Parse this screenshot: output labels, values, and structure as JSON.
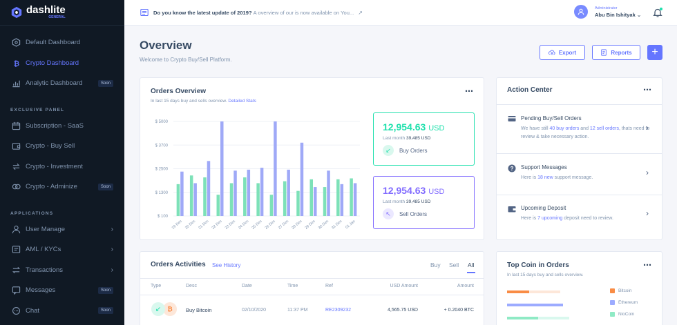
{
  "brand": {
    "name": "dashlite",
    "edition": "GENERAL"
  },
  "sidebar": {
    "dashboards": [
      {
        "label": "Default Dashboard",
        "icon": "dashboard-icon",
        "active": false
      },
      {
        "label": "Crypto Dashboard",
        "icon": "bitcoin-icon",
        "active": true
      },
      {
        "label": "Analytic Dashboard",
        "icon": "analytics-icon",
        "badge": "Soon",
        "active": false
      }
    ],
    "exclusive_heading": "EXCLUSIVE PANEL",
    "exclusive": [
      {
        "label": "Subscription - SaaS",
        "icon": "calendar-icon"
      },
      {
        "label": "Crypto - Buy Sell",
        "icon": "wallet-icon"
      },
      {
        "label": "Crypto - Investment",
        "icon": "exchange-icon"
      },
      {
        "label": "Crypto - Adminize",
        "icon": "coins-icon",
        "badge": "Soon"
      }
    ],
    "apps_heading": "APPLICATIONS",
    "apps": [
      {
        "label": "User Manage",
        "icon": "users-icon",
        "chevron": true
      },
      {
        "label": "AML / KYCs",
        "icon": "file-icon",
        "chevron": true
      },
      {
        "label": "Transactions",
        "icon": "transfer-icon",
        "chevron": true
      },
      {
        "label": "Messages",
        "icon": "chat-icon",
        "badge": "Soon"
      },
      {
        "label": "Chat",
        "icon": "chat-circle-icon",
        "badge": "Soon"
      }
    ]
  },
  "header": {
    "news_question": "Do you know the latest update of 2019?",
    "news_text": "A overview of our is now available on You...",
    "user_role": "Administrator",
    "user_name": "Abu Bin Ishityak"
  },
  "page": {
    "title": "Overview",
    "subtitle": "Welcome to Crypto Buy/Sell Platform.",
    "export_label": "Export",
    "reports_label": "Reports"
  },
  "orders_overview": {
    "title": "Orders Overview",
    "subtitle": "In last 15 days buy and sells overview.",
    "link": "Detailed Stats",
    "buy": {
      "amount": "12,954.63",
      "currency": "USD",
      "last_month_label": "Last month",
      "last_month": "39,485 USD",
      "label": "Buy Orders"
    },
    "sell": {
      "amount": "12,954.63",
      "currency": "USD",
      "last_month_label": "Last month",
      "last_month": "39,485 USD",
      "label": "Sell Orders"
    }
  },
  "chart_data": {
    "type": "bar",
    "categories": [
      "19 Dec",
      "20 Dec",
      "21 Dec",
      "22 Dec",
      "23 Dec",
      "24 Dec",
      "25 Dec",
      "26 Dec",
      "27 Dec",
      "28 Dec",
      "29 Dec",
      "30 Dec",
      "31 Dec",
      "01 Jan"
    ],
    "yticks": [
      "$ 5000",
      "$ 3700",
      "$ 2500",
      "$ 1300",
      "$ 100"
    ],
    "ylim": [
      100,
      5000
    ],
    "series": [
      {
        "color": "#7de1b8",
        "values": [
          1750,
          2200,
          2100,
          1200,
          1800,
          2100,
          1800,
          1200,
          1900,
          1400,
          2000,
          1600,
          2000,
          2050
        ]
      },
      {
        "color": "#9fa9f7",
        "values": [
          2400,
          1800,
          2950,
          5000,
          2450,
          2500,
          2600,
          5000,
          2500,
          3900,
          1600,
          2450,
          1750,
          1800
        ]
      }
    ]
  },
  "action_center": {
    "title": "Action Center",
    "items": [
      {
        "title": "Pending Buy/Sell Orders",
        "line1_pre": "We have still",
        "link1": "40 buy orders",
        "line1_mid": "and",
        "link2": "12 sell orders",
        "line2": ", thats need to review & take necessary action.",
        "icon": "card-icon"
      },
      {
        "title": "Support Messages",
        "line1_pre": "Here is",
        "link1": "18 new",
        "line2": "support message.",
        "icon": "help-icon"
      },
      {
        "title": "Upcoming Deposit",
        "line1_pre": "Here is",
        "link1": "7 upcoming",
        "line2": "deposit need to review.",
        "icon": "wallet-icon"
      }
    ]
  },
  "activities": {
    "title": "Orders Activities",
    "link": "See History",
    "tabs": [
      "Buy",
      "Sell",
      "All"
    ],
    "active_tab": "All",
    "columns": [
      "Type",
      "Desc",
      "Date",
      "Time",
      "Ref",
      "USD Amount",
      "Amount"
    ],
    "rows": [
      {
        "desc": "Buy Bitcoin",
        "date": "02/10/2020",
        "time": "11:37 PM",
        "ref": "RE2309232",
        "usd": "4,565.75 USD",
        "amount": "+ 0.2040 BTC"
      }
    ]
  },
  "top_coin": {
    "title": "Top Coin in Orders",
    "subtitle": "In last 15 days buy and sells overview.",
    "legend": [
      {
        "name": "Bitcoin",
        "color": "#f98c45"
      },
      {
        "name": "Ethereum",
        "color": "#9cabff"
      },
      {
        "name": "NioCoin",
        "color": "#8feac5"
      }
    ]
  }
}
